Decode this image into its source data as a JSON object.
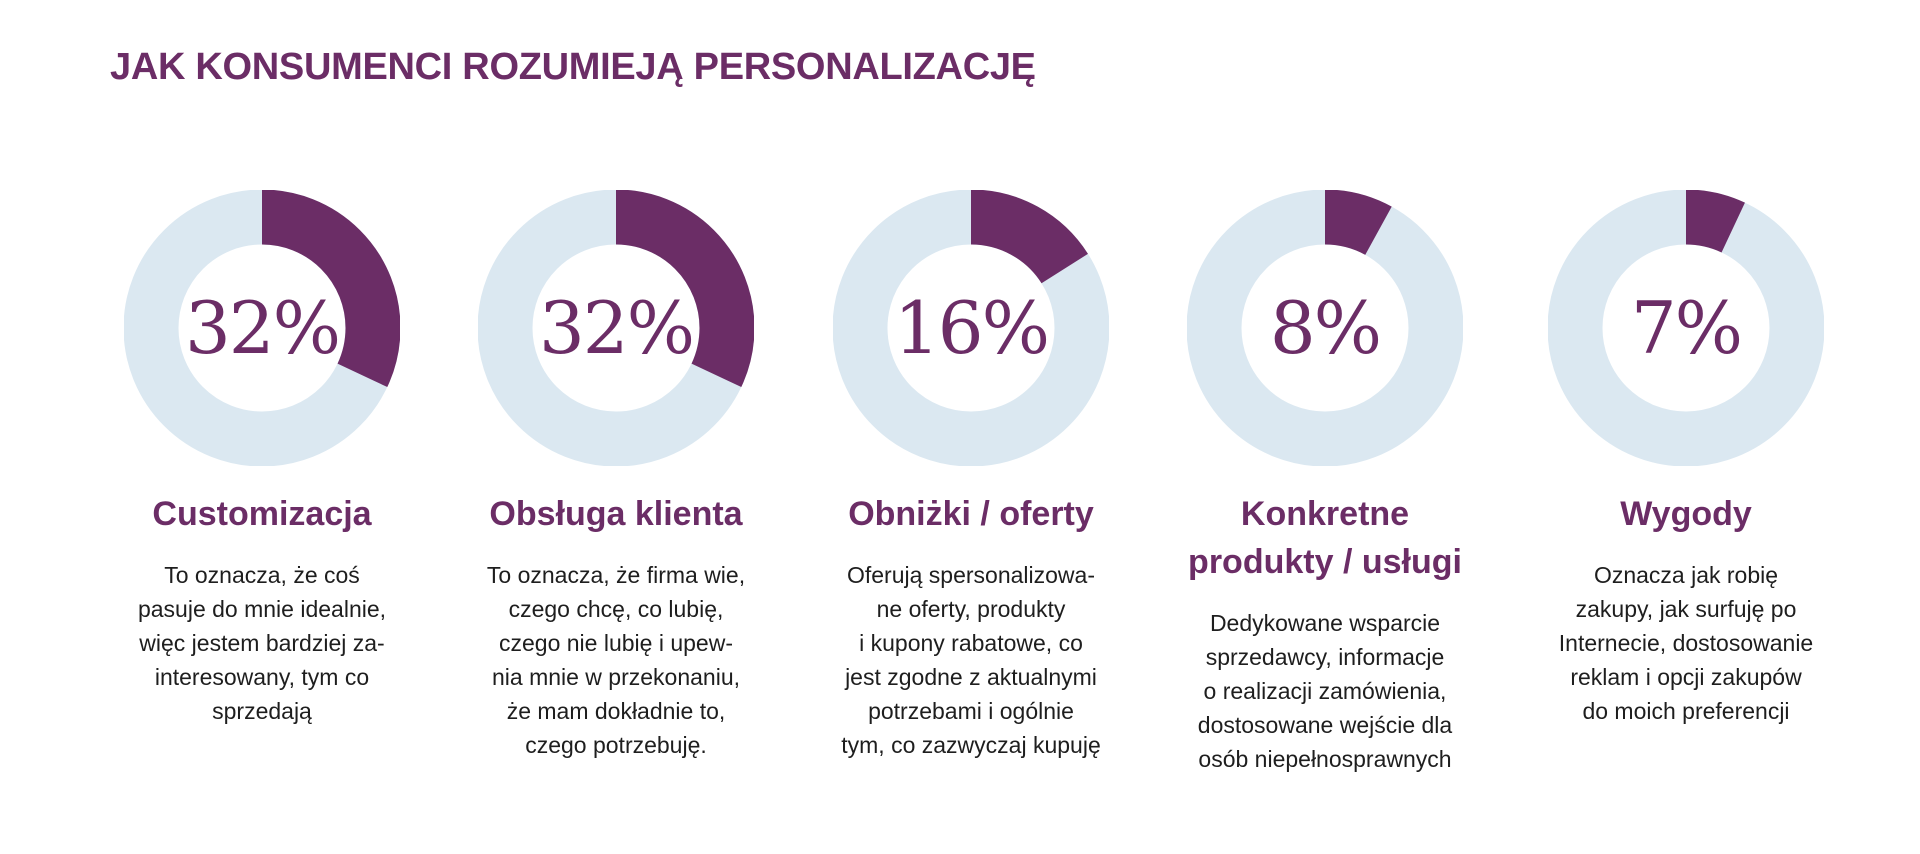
{
  "page": {
    "title": "JAK KONSUMENCI ROZUMIEJĄ PERSONALIZACJĘ"
  },
  "colors": {
    "accent": "#6b2d66",
    "track": "#dbe8f1"
  },
  "items": [
    {
      "percent_label": "32%",
      "title": "Customizacja",
      "description": "To oznacza, że coś\npasuje do mnie idealnie,\nwięc jestem bardziej za-\ninteresowany, tym co\nsprzedają"
    },
    {
      "percent_label": "32%",
      "title": "Obsługa klienta",
      "description": "To oznacza, że firma wie,\nczego chcę, co lubię,\nczego nie lubię i upew-\nnia mnie w przekonaniu,\nże mam dokładnie to,\nczego potrzebuję."
    },
    {
      "percent_label": "16%",
      "title": "Obniżki / oferty",
      "description": "Oferują spersonalizowa-\nne oferty, produkty\ni kupony rabatowe, co\njest zgodne z aktualnymi\npotrzebami i ogólnie\ntym, co zazwyczaj kupuję"
    },
    {
      "percent_label": "8%",
      "title": "Konkretne\nprodukty / usługi",
      "description": "Dedykowane wsparcie\nsprzedawcy, informacje\no realizacji zamówienia,\ndostosowane wejście dla\nosób niepełnosprawnych"
    },
    {
      "percent_label": "7%",
      "title": "Wygody",
      "description": "Oznacza jak robię\nzakupy, jak surfuję po\nInternecie, dostosowanie\nreklam i opcji zakupów\ndo moich preferencji"
    }
  ],
  "chart_data": {
    "type": "pie",
    "categories": [
      "Customizacja",
      "Obsługa klienta",
      "Obniżki / oferty",
      "Konkretne produkty / usługi",
      "Wygody"
    ],
    "values": [
      32,
      32,
      16,
      8,
      7
    ],
    "unit": "%",
    "title": "JAK KONSUMENCI ROZUMIEJĄ PERSONALIZACJĘ"
  }
}
